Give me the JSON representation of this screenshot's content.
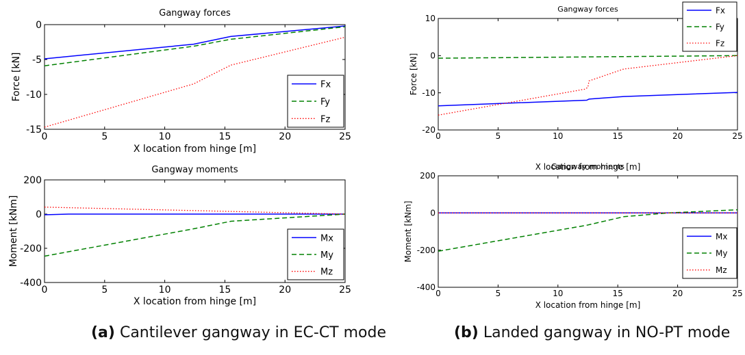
{
  "captions": {
    "a": {
      "label": "(a)",
      "text": "Cantilever gangway in EC-CT mode"
    },
    "b": {
      "label": "(b)",
      "text": "Landed gangway in NO-PT mode"
    }
  },
  "chart_data": [
    {
      "type": "line",
      "title": "Gangway forces",
      "xlabel": "X location from hinge [m]",
      "ylabel": "Force [kN]",
      "xlim": [
        0,
        25
      ],
      "ylim": [
        -15,
        0
      ],
      "xticks": [
        0,
        5,
        10,
        15,
        20,
        25
      ],
      "yticks": [
        -15,
        -10,
        -5,
        0
      ],
      "grid": false,
      "legend": "bottom-right",
      "series": [
        {
          "name": "Fx",
          "color": "#0000ff",
          "style": "solid",
          "x": [
            0,
            12.4,
            15.5,
            25
          ],
          "y": [
            -4.9,
            -2.8,
            -1.7,
            -0.2
          ]
        },
        {
          "name": "Fy",
          "color": "#008000",
          "style": "dashed",
          "x": [
            0,
            12.4,
            15.5,
            25
          ],
          "y": [
            -5.9,
            -3.1,
            -2.1,
            -0.3
          ]
        },
        {
          "name": "Fz",
          "color": "#ff0000",
          "style": "dotted",
          "x": [
            0,
            12.4,
            15.5,
            25
          ],
          "y": [
            -14.7,
            -8.5,
            -5.8,
            -1.8
          ]
        }
      ]
    },
    {
      "type": "line",
      "title": "Gangway moments",
      "xlabel": "X location from hinge [m]",
      "ylabel": "Moment [kNm]",
      "xlim": [
        0,
        25
      ],
      "ylim": [
        -400,
        200
      ],
      "xticks": [
        0,
        5,
        10,
        15,
        20,
        25
      ],
      "yticks": [
        -400,
        -200,
        0,
        200
      ],
      "grid": false,
      "legend": "bottom-right",
      "series": [
        {
          "name": "Mx",
          "color": "#0000ff",
          "style": "solid",
          "x": [
            0,
            2,
            25
          ],
          "y": [
            -4,
            0,
            0
          ]
        },
        {
          "name": "My",
          "color": "#008000",
          "style": "dashed",
          "x": [
            0,
            12.4,
            15.5,
            25
          ],
          "y": [
            -246,
            -86,
            -42,
            0
          ]
        },
        {
          "name": "Mz",
          "color": "#ff0000",
          "style": "dotted",
          "x": [
            0,
            25
          ],
          "y": [
            41,
            0
          ]
        }
      ]
    },
    {
      "type": "line",
      "title": "Gangway forces",
      "xlabel": "X location from hinge [m]",
      "ylabel": "Force [kN]",
      "xlim": [
        0,
        25
      ],
      "ylim": [
        -20,
        10
      ],
      "xticks": [
        0,
        5,
        10,
        15,
        20,
        25
      ],
      "yticks": [
        -20,
        -10,
        0,
        10
      ],
      "grid": false,
      "legend": "top-right",
      "series": [
        {
          "name": "Fx",
          "color": "#0000ff",
          "style": "solid",
          "x": [
            0,
            12.4,
            12.6,
            15.5,
            25
          ],
          "y": [
            -13.5,
            -12.0,
            -11.7,
            -11.0,
            -9.9
          ]
        },
        {
          "name": "Fy",
          "color": "#008000",
          "style": "dashed",
          "x": [
            0,
            25
          ],
          "y": [
            -0.7,
            0
          ]
        },
        {
          "name": "Fz",
          "color": "#ff0000",
          "style": "dotted",
          "x": [
            0,
            12.3,
            12.5,
            12.6,
            15.5,
            25
          ],
          "y": [
            -16,
            -9,
            -8.5,
            -6.8,
            -3.6,
            0
          ]
        }
      ]
    },
    {
      "type": "line",
      "title": "Gangway moments",
      "xlabel": "X location from hinge [m]",
      "ylabel": "Moment [kNm]",
      "xlim": [
        0,
        25
      ],
      "ylim": [
        -400,
        200
      ],
      "xticks": [
        0,
        5,
        10,
        15,
        20,
        25
      ],
      "yticks": [
        -400,
        -200,
        0,
        200
      ],
      "grid": false,
      "legend": "bottom-right",
      "series": [
        {
          "name": "Mx",
          "color": "#0000ff",
          "style": "solid",
          "x": [
            0,
            25
          ],
          "y": [
            0,
            0
          ]
        },
        {
          "name": "My",
          "color": "#008000",
          "style": "dashed",
          "x": [
            0,
            12.4,
            15.5,
            19.2,
            25
          ],
          "y": [
            -206,
            -66,
            -20,
            0,
            17
          ]
        },
        {
          "name": "Mz",
          "color": "#ff0000",
          "style": "dotted",
          "x": [
            0,
            25
          ],
          "y": [
            0,
            0
          ]
        }
      ]
    }
  ]
}
